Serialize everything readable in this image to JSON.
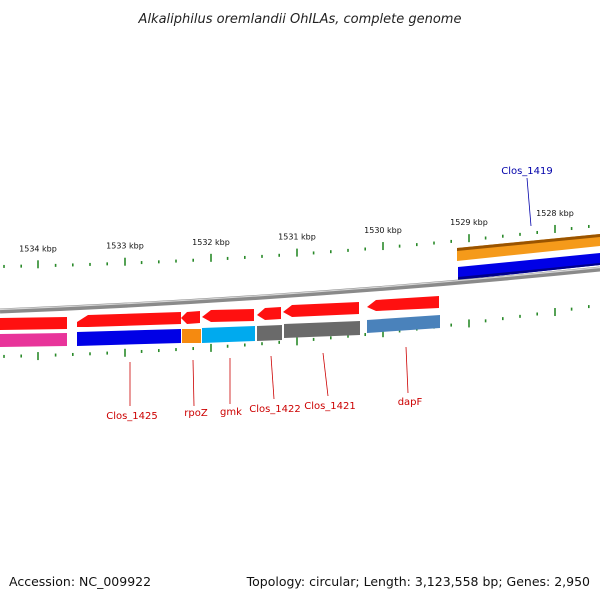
{
  "title": "Alkaliphilus oremlandii OhILAs, complete genome",
  "footer": {
    "accession": "Accession: NC_009922",
    "summary": "Topology: circular; Length: 3,123,558 bp; Genes: 2,950"
  },
  "colors": {
    "cds_red": "#ff1010",
    "backbone": "#8a8a8a",
    "tick": "#2a8a2a",
    "label_red": "#cc0000",
    "label_blue": "#0000aa"
  },
  "kbp_ticks": [
    {
      "label": "1534 kbp",
      "kb": 1534
    },
    {
      "label": "1533 kbp",
      "kb": 1533
    },
    {
      "label": "1532 kbp",
      "kb": 1532
    },
    {
      "label": "1531 kbp",
      "kb": 1531
    },
    {
      "label": "1530 kbp",
      "kb": 1530
    },
    {
      "label": "1529 kbp",
      "kb": 1529
    },
    {
      "label": "1528 kbp",
      "kb": 1528
    }
  ],
  "gene_labels": [
    {
      "name": "Clos_1425",
      "color": "red"
    },
    {
      "name": "rpoZ",
      "color": "red"
    },
    {
      "name": "gmk",
      "color": "red"
    },
    {
      "name": "Clos_1422",
      "color": "red"
    },
    {
      "name": "Clos_1421",
      "color": "red"
    },
    {
      "name": "dapF",
      "color": "red"
    },
    {
      "name": "Clos_1419",
      "color": "blue"
    }
  ]
}
